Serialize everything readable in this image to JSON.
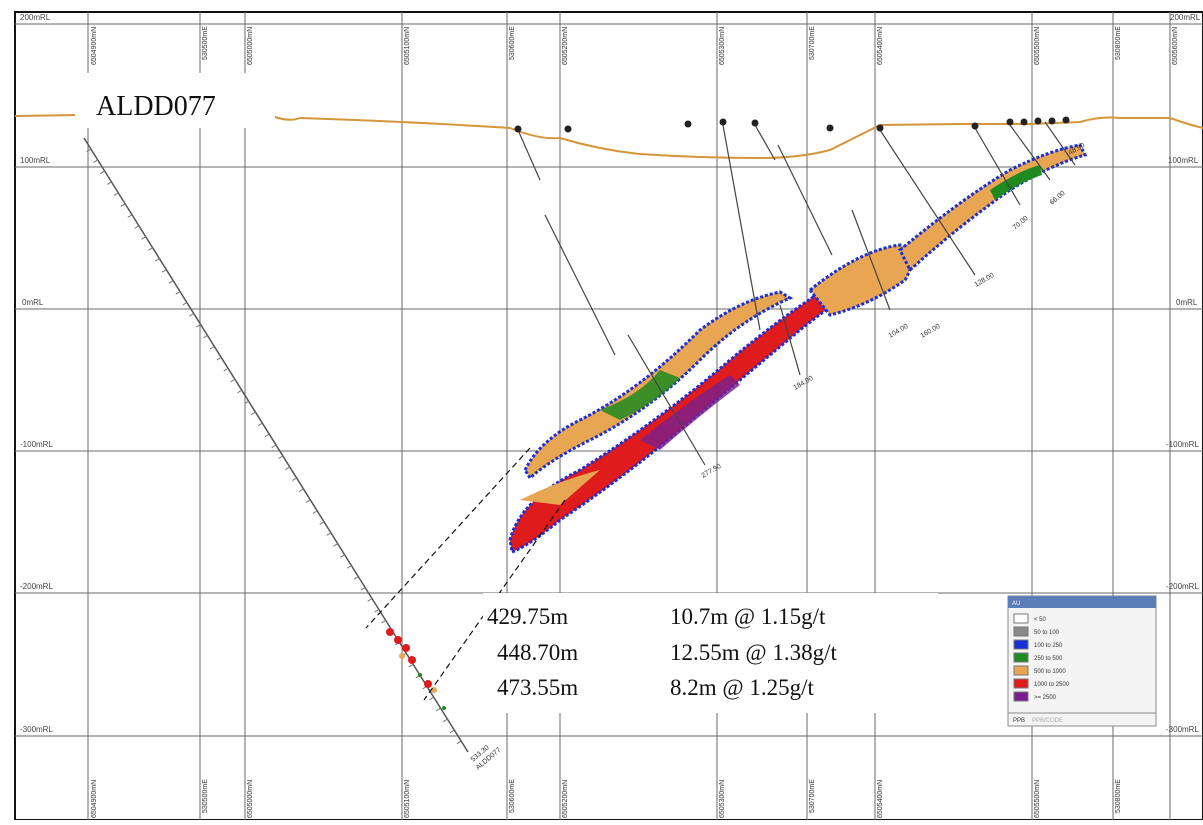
{
  "section": {
    "hole_label": "ALDD077",
    "rl_labels_left": [
      "200mRL",
      "100mRL",
      "0mRL",
      "-100mRL",
      "-200mRL",
      "-300mRL"
    ],
    "rl_labels_right": [
      "200mRL",
      "100mRL",
      "0mRL",
      "-100mRL",
      "-200mRL",
      "-300mRL"
    ],
    "coords_top": [
      "6504900mN",
      "530500mE",
      "6505000mN",
      "6505100mN",
      "530600mE",
      "6505200mN",
      "6505300mN",
      "530700mE",
      "6505400mN",
      "6505500mN",
      "530800mE",
      "6505600mN"
    ],
    "coords_bottom": [
      "6504900mN",
      "530500mE",
      "6505000mN",
      "6505100mN",
      "530600mE",
      "6505200mN",
      "6505300mN",
      "530700mE",
      "6505400mN",
      "6505500mN",
      "530800mE"
    ],
    "hole_depths": [
      "533.30",
      "277.90",
      "184.00",
      "104.00",
      "160.00",
      "128.00",
      "70.00",
      "66.00",
      "48.90"
    ],
    "bottom_hole_label": "ALDD077"
  },
  "callout": {
    "depths": [
      "429.75m",
      "448.70m",
      "473.55m"
    ],
    "intercepts": [
      "10.7m @ 1.15g/t",
      "12.55m @ 1.38g/t",
      "8.2m @ 1.25g/t"
    ]
  },
  "legend": {
    "title": "AU",
    "items": [
      {
        "label": "< 50",
        "color": "#ffffff"
      },
      {
        "label": "50 to 100",
        "color": "#8a8a8a"
      },
      {
        "label": "100 to 250",
        "color": "#1a2fd6"
      },
      {
        "label": "250 to 500",
        "color": "#1f8a1f"
      },
      {
        "label": "500 to 1000",
        "color": "#e8a552"
      },
      {
        "label": "1000 to 2500",
        "color": "#e01b1b"
      },
      {
        "label": ">= 2500",
        "color": "#7a1f8f"
      }
    ],
    "footer_key": "PPB",
    "footer_value": "PPB/CODE"
  },
  "colors": {
    "topography": "#d4963a",
    "grid": "#6a6a6a",
    "low": "#1a2fd6",
    "mid": "#1f8a1f",
    "orange": "#e8a552",
    "high": "#e01b1b",
    "purple": "#7a1f8f"
  }
}
